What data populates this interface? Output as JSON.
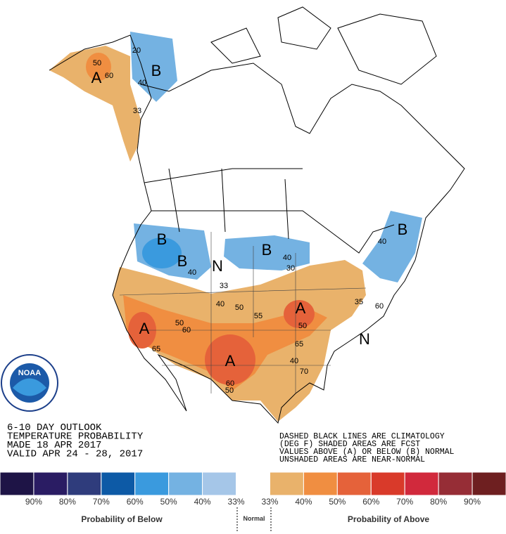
{
  "header": {
    "lines": [
      "6-10 DAY OUTLOOK",
      "TEMPERATURE PROBABILITY",
      "MADE  18 APR 2017",
      "VALID  APR 24 - 28, 2017"
    ]
  },
  "notes": {
    "lines": [
      "DASHED BLACK LINES ARE CLIMATOLOGY",
      "(DEG F) SHADED AREAS ARE FCST",
      "VALUES ABOVE (A) OR BELOW (B) NORMAL",
      "UNSHADED AREAS ARE NEAR-NORMAL"
    ]
  },
  "logo": "NOAA",
  "map": {
    "labels": [
      "B",
      "A",
      "B",
      "B",
      "N",
      "B",
      "B",
      "A",
      "A",
      "A",
      "N"
    ],
    "contours": [
      "20",
      "50",
      "60",
      "40",
      "33",
      "40",
      "30",
      "33",
      "40",
      "50",
      "55",
      "50",
      "50",
      "60",
      "65",
      "65",
      "40",
      "70",
      "60",
      "50",
      "35",
      "40",
      "40",
      "60"
    ]
  },
  "legend": {
    "colors": [
      "#1e1446",
      "#2a1c63",
      "#2f3c7c",
      "#0d5aa6",
      "#3a9ade",
      "#74b2e2",
      "#a5c6e8",
      "#ffffff",
      "#e9b26b",
      "#f08e41",
      "#e5623a",
      "#d93a2a",
      "#d1293c",
      "#962d36",
      "#6e1f20"
    ],
    "labels": [
      "90%",
      "80%",
      "70%",
      "60%",
      "50%",
      "40%",
      "33%",
      "33%",
      "40%",
      "50%",
      "60%",
      "70%",
      "80%",
      "90%"
    ],
    "below": "Probability of Below",
    "normal": "Normal",
    "above": "Probability of Above"
  }
}
